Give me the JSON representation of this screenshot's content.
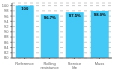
{
  "chart_data": {
    "type": "bar",
    "categories": [
      "Reference",
      "Rolling resistance",
      "Service life",
      "Mass"
    ],
    "values": [
      100,
      96.7,
      97.5,
      98.0
    ],
    "value_labels": [
      "100",
      "96.7%",
      "97.5%",
      "98.0%"
    ],
    "data_labels": true,
    "color": "#44C8F5",
    "ylim": [
      80,
      101
    ],
    "yticks": [
      80,
      82,
      84,
      86,
      88,
      90,
      92,
      94,
      96,
      98,
      100
    ],
    "grid": true
  }
}
